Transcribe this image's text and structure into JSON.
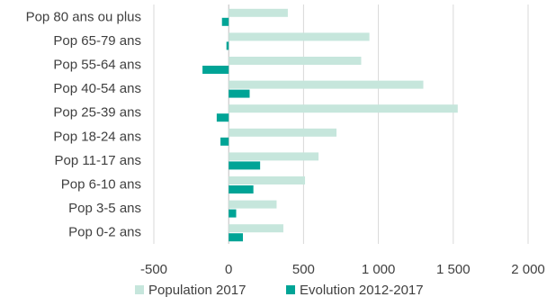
{
  "chart_data": {
    "type": "bar",
    "orientation": "horizontal",
    "categories": [
      "Pop 80 ans ou plus",
      "Pop 65-79 ans",
      "Pop 55-64 ans",
      "Pop 40-54 ans",
      "Pop 25-39 ans",
      "Pop 18-24 ans",
      "Pop 11-17 ans",
      "Pop 6-10 ans",
      "Pop 3-5 ans",
      "Pop 0-2 ans"
    ],
    "series": [
      {
        "name": "Population 2017",
        "color": "#c6e6dc",
        "values": [
          395,
          940,
          885,
          1300,
          1530,
          720,
          600,
          510,
          320,
          365
        ]
      },
      {
        "name": "Evolution 2012-2017",
        "color": "#00a496",
        "values": [
          -45,
          -15,
          -175,
          140,
          -80,
          -55,
          210,
          165,
          50,
          95
        ]
      }
    ],
    "xlim": [
      -500,
      2000
    ],
    "xticks": [
      -500,
      0,
      500,
      1000,
      1500,
      2000
    ],
    "xtick_labels": [
      "-500",
      "0",
      "500",
      "1 000",
      "1 500",
      "2 000"
    ],
    "grid": true,
    "legend_position": "bottom"
  }
}
